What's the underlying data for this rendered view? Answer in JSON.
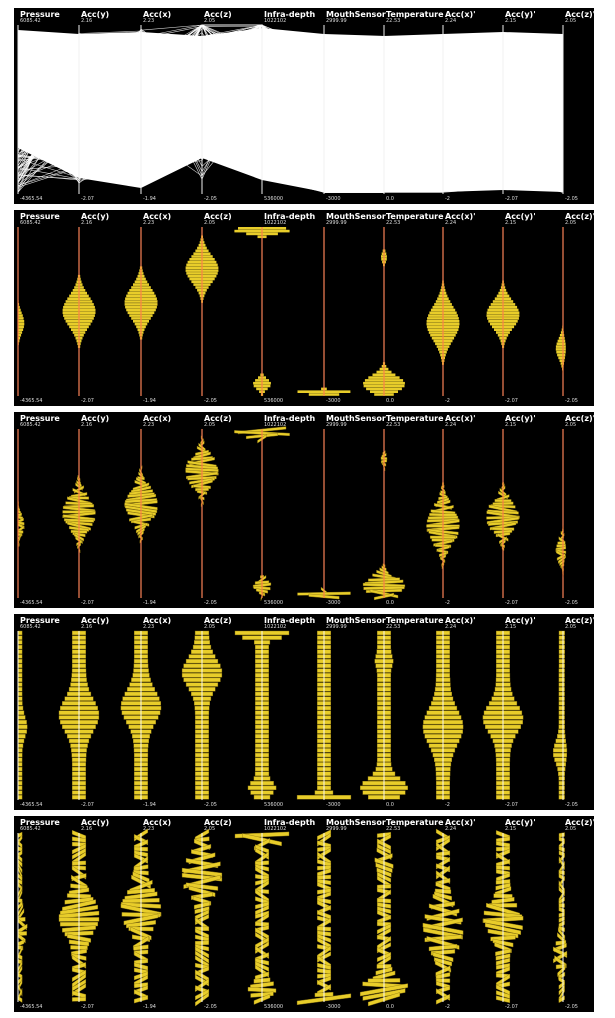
{
  "chart_data": {
    "type": "parallel-coordinates",
    "views": [
      "lines",
      "histogram",
      "oriented-histogram",
      "large-bins",
      "oriented-large-bins"
    ],
    "colors": {
      "background": "#000000",
      "bin_fill": "#e8cd2a",
      "bin_edge": "#8a7410",
      "axis": "#f0f0f0",
      "axis_mark": "#ff7a4a",
      "line": "#ffffff"
    },
    "axes": [
      {
        "name": "Pressure",
        "max": "6085.42",
        "min": "-4365.54"
      },
      {
        "name": "Acc(y)",
        "max": "2.16",
        "min": "-2.07"
      },
      {
        "name": "Acc(x)",
        "max": "2.23",
        "min": "-1.94"
      },
      {
        "name": "Acc(z)",
        "max": "2.05",
        "min": "-2.05"
      },
      {
        "name": "Infra-depth",
        "max": "1022102",
        "min": "536000"
      },
      {
        "name": "MouthSensor",
        "max": "2999.99",
        "min": "-3000"
      },
      {
        "name": "Temperature",
        "max": "22.53",
        "min": "0.0"
      },
      {
        "name": "Acc(x)'",
        "max": "2.24",
        "min": "-2"
      },
      {
        "name": "Acc(y)'",
        "max": "2.15",
        "min": "-2.07"
      },
      {
        "name": "Acc(z)'",
        "max": "2.05",
        "min": "-2.05"
      }
    ],
    "histograms": [
      {
        "center": 0.57,
        "peak": 0.35,
        "spread": 0.06
      },
      {
        "center": 0.5,
        "peak": 0.55,
        "spread": 0.09
      },
      {
        "center": 0.45,
        "peak": 0.55,
        "spread": 0.09
      },
      {
        "center": 0.25,
        "peak": 0.55,
        "spread": 0.08
      },
      {
        "center": 0.02,
        "peak": 0.95,
        "spread": 0.02,
        "center2": 0.93,
        "peak2": 0.3,
        "spread2": 0.03
      },
      {
        "center": 0.98,
        "peak": 1.0,
        "spread": 0.01
      },
      {
        "center": 0.93,
        "peak": 0.7,
        "spread": 0.05,
        "center2": 0.18,
        "peak2": 0.1,
        "spread2": 0.03
      },
      {
        "center": 0.57,
        "peak": 0.55,
        "spread": 0.1
      },
      {
        "center": 0.52,
        "peak": 0.55,
        "spread": 0.08
      },
      {
        "center": 0.72,
        "peak": 0.4,
        "spread": 0.06
      }
    ]
  }
}
